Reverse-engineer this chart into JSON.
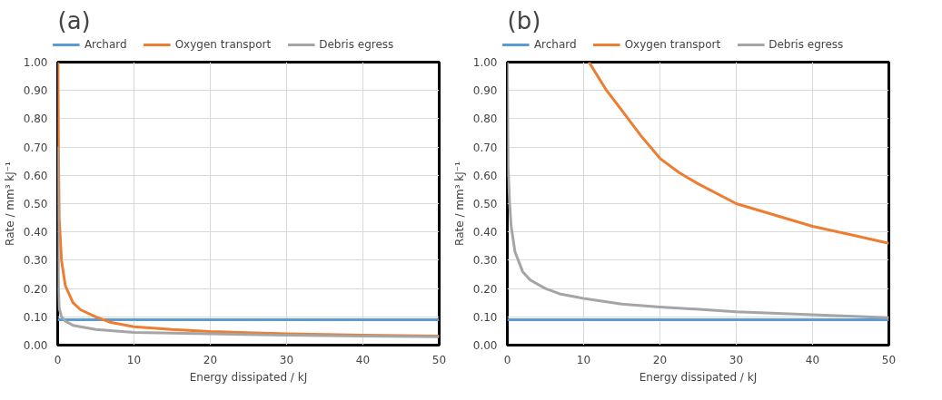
{
  "chart_data": [
    {
      "type": "line",
      "title": "(a)",
      "xlabel": "Energy dissipated / kJ",
      "ylabel": "Rate / mm³ kJ⁻¹",
      "xlim": [
        0,
        50
      ],
      "ylim": [
        0,
        1
      ],
      "xticks": [
        0,
        10,
        20,
        30,
        40,
        50
      ],
      "yticks": [
        {
          "value": 0,
          "label": "0.00"
        },
        {
          "value": 0.1,
          "label": "0.10"
        },
        {
          "value": 0.2,
          "label": "0.20"
        },
        {
          "value": 0.3,
          "label": "0.30"
        },
        {
          "value": 0.4,
          "label": "0.40"
        },
        {
          "value": 0.5,
          "label": "0.50"
        },
        {
          "value": 0.6,
          "label": "0.60"
        },
        {
          "value": 0.7,
          "label": "0.70"
        },
        {
          "value": 0.8,
          "label": "0.80"
        },
        {
          "value": 0.9,
          "label": "0.90"
        },
        {
          "value": 1,
          "label": "1.00"
        }
      ],
      "grid": true,
      "legend": "top",
      "series": [
        {
          "name": "Archard",
          "color": "#5b9bd5",
          "x": [
            0,
            50
          ],
          "values": [
            0.09,
            0.09
          ]
        },
        {
          "name": "Oxygen transport",
          "color": "#ed7d31",
          "x": [
            0.04,
            0.1,
            0.2,
            0.5,
            1,
            2,
            3,
            5,
            7,
            10,
            15,
            20,
            30,
            40,
            50
          ],
          "values": [
            1.0,
            0.7,
            0.45,
            0.3,
            0.21,
            0.15,
            0.125,
            0.1,
            0.08,
            0.065,
            0.055,
            0.048,
            0.04,
            0.035,
            0.032
          ]
        },
        {
          "name": "Debris egress",
          "color": "#a5a5a5",
          "x": [
            0,
            0.02,
            0.1,
            0.2,
            0.5,
            1,
            2,
            5,
            10,
            20,
            30,
            40,
            50
          ],
          "values": [
            0.7,
            0.62,
            0.2,
            0.13,
            0.1,
            0.085,
            0.07,
            0.055,
            0.045,
            0.04,
            0.035,
            0.032,
            0.03
          ]
        }
      ]
    },
    {
      "type": "line",
      "title": "(b)",
      "xlabel": "Energy dissipated / kJ",
      "ylabel": "Rate / mm³ kJ⁻¹",
      "xlim": [
        0,
        50
      ],
      "ylim": [
        0,
        1
      ],
      "xticks": [
        0,
        10,
        20,
        30,
        40,
        50
      ],
      "yticks": [
        {
          "value": 0,
          "label": "0.00"
        },
        {
          "value": 0.1,
          "label": "0.10"
        },
        {
          "value": 0.2,
          "label": "0.20"
        },
        {
          "value": 0.3,
          "label": "0.30"
        },
        {
          "value": 0.4,
          "label": "0.40"
        },
        {
          "value": 0.5,
          "label": "0.50"
        },
        {
          "value": 0.6,
          "label": "0.60"
        },
        {
          "value": 0.7,
          "label": "0.70"
        },
        {
          "value": 0.8,
          "label": "0.80"
        },
        {
          "value": 0.9,
          "label": "0.90"
        },
        {
          "value": 1,
          "label": "1.00"
        }
      ],
      "grid": true,
      "legend": "top",
      "series": [
        {
          "name": "Archard",
          "color": "#5b9bd5",
          "x": [
            0,
            50
          ],
          "values": [
            0.09,
            0.09
          ]
        },
        {
          "name": "Oxygen transport",
          "color": "#ed7d31",
          "x": [
            10.7,
            13,
            15,
            17.5,
            20,
            22.5,
            25,
            30,
            35,
            40,
            45,
            50
          ],
          "values": [
            1.0,
            0.9,
            0.83,
            0.74,
            0.66,
            0.61,
            0.57,
            0.5,
            0.46,
            0.42,
            0.39,
            0.36
          ]
        },
        {
          "name": "Debris egress",
          "color": "#a5a5a5",
          "x": [
            0,
            0.05,
            0.1,
            0.3,
            0.5,
            1,
            2,
            3,
            5,
            7,
            10,
            15,
            20,
            30,
            40,
            50
          ],
          "values": [
            1.0,
            0.8,
            0.63,
            0.5,
            0.42,
            0.33,
            0.26,
            0.23,
            0.2,
            0.18,
            0.165,
            0.145,
            0.135,
            0.118,
            0.107,
            0.097
          ]
        }
      ]
    }
  ]
}
